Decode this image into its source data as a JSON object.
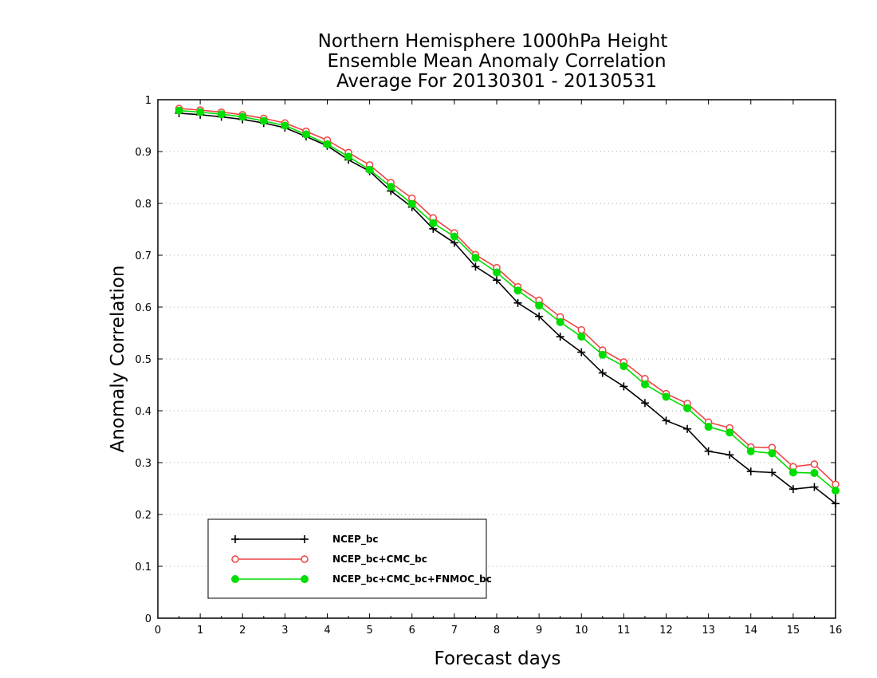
{
  "chart_data": {
    "type": "line",
    "title": [
      "Northern Hemisphere 1000hPa Height",
      "Ensemble Mean Anomaly Correlation",
      "Average For 20130301 - 20130531"
    ],
    "xlabel": "Forecast days",
    "ylabel": "Anomaly Correlation",
    "xlim": [
      0,
      16
    ],
    "ylim": [
      0,
      1
    ],
    "xticks": [
      0,
      1,
      2,
      3,
      4,
      5,
      6,
      7,
      8,
      9,
      10,
      11,
      12,
      13,
      14,
      15,
      16
    ],
    "xtick_labels": [
      "0",
      "1",
      "2",
      "3",
      "4",
      "5",
      "6",
      "7",
      "8",
      "9",
      "10",
      "11",
      "12",
      "13",
      "14",
      "15",
      "16"
    ],
    "yticks": [
      0,
      0.1,
      0.2,
      0.3,
      0.4,
      0.5,
      0.6,
      0.7,
      0.8,
      0.9,
      1
    ],
    "ytick_labels": [
      "0",
      "0.1",
      "0.2",
      "0.3",
      "0.4",
      "0.5",
      "0.6",
      "0.7",
      "0.8",
      "0.9",
      "1"
    ],
    "grid": "horizontal dotted",
    "legend_position": "bottom-left",
    "x": [
      0.5,
      1,
      1.5,
      2,
      2.5,
      3,
      3.5,
      4,
      4.5,
      5,
      5.5,
      6,
      6.5,
      7,
      7.5,
      8,
      8.5,
      9,
      9.5,
      10,
      10.5,
      11,
      11.5,
      12,
      12.5,
      13,
      13.5,
      14,
      14.5,
      15,
      15.5,
      16
    ],
    "series": [
      {
        "name": "NCEP_bc",
        "color": "#000000",
        "marker": "plus",
        "values": [
          0.974,
          0.971,
          0.967,
          0.962,
          0.955,
          0.946,
          0.929,
          0.911,
          0.884,
          0.862,
          0.824,
          0.793,
          0.751,
          0.724,
          0.678,
          0.652,
          0.608,
          0.582,
          0.543,
          0.513,
          0.473,
          0.447,
          0.415,
          0.381,
          0.365,
          0.322,
          0.315,
          0.283,
          0.281,
          0.249,
          0.253,
          0.221
        ]
      },
      {
        "name": "NCEP_bc+CMC_bc",
        "color": "#ee4444",
        "marker": "open-circle",
        "values": [
          0.983,
          0.98,
          0.976,
          0.971,
          0.964,
          0.955,
          0.939,
          0.922,
          0.898,
          0.874,
          0.84,
          0.81,
          0.772,
          0.743,
          0.701,
          0.676,
          0.639,
          0.613,
          0.581,
          0.556,
          0.517,
          0.494,
          0.462,
          0.433,
          0.414,
          0.378,
          0.367,
          0.33,
          0.329,
          0.292,
          0.297,
          0.258
        ]
      },
      {
        "name": "NCEP_bc+CMC_bc+FNMOC_bc",
        "color": "#00dd00",
        "marker": "filled-circle",
        "values": [
          0.979,
          0.976,
          0.972,
          0.967,
          0.959,
          0.95,
          0.933,
          0.914,
          0.89,
          0.865,
          0.832,
          0.799,
          0.762,
          0.736,
          0.695,
          0.667,
          0.632,
          0.603,
          0.571,
          0.543,
          0.508,
          0.486,
          0.451,
          0.427,
          0.405,
          0.369,
          0.358,
          0.322,
          0.318,
          0.281,
          0.28,
          0.246
        ]
      }
    ]
  }
}
